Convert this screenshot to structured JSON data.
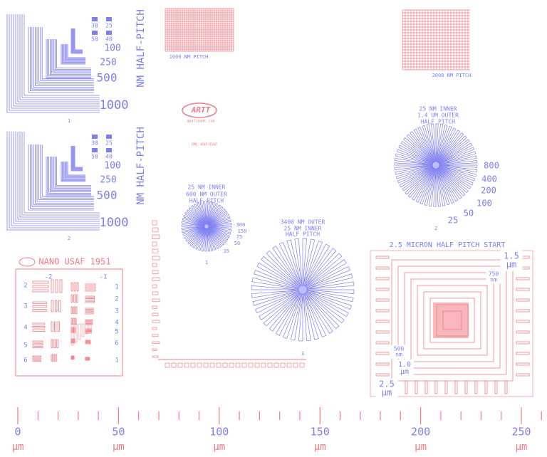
{
  "pattern_1": {
    "label": "1",
    "pitch_labels": [
      "30",
      "25",
      "50",
      "40",
      "100",
      "250",
      "500",
      "1000"
    ],
    "caption": "NM HALF-PITCH"
  },
  "pattern_2": {
    "label": "2",
    "pitch_labels": [
      "30",
      "25",
      "50",
      "40",
      "100",
      "250",
      "500",
      "1000"
    ],
    "caption": "NM HALF-PITCH"
  },
  "grid_1": {
    "caption": "1000 NM PITCH"
  },
  "grid_2": {
    "caption": "2000 NM PITCH"
  },
  "logo": {
    "mark": "ARTT",
    "site": "appliednt.com",
    "model": "DML-400 USAF"
  },
  "star_1": {
    "title": [
      "25 NM INNER",
      "600 NM OUTER",
      "HALF PITCH"
    ],
    "scale": [
      "300",
      "150",
      "75",
      "50",
      "35"
    ],
    "label": "1"
  },
  "star_2": {
    "title": [
      "25 NM INNER",
      "1.4 UM OUTER",
      "HALF PITCH"
    ],
    "scale": [
      "800",
      "400",
      "200",
      "100",
      "50",
      "25"
    ],
    "label": "2"
  },
  "star_3": {
    "title": [
      "3400 NM OUTER",
      "25 NM INNER",
      "HALF PITCH"
    ],
    "label": "3"
  },
  "usaf": {
    "title": "NANO USAF 1951",
    "groups": [
      "-2",
      "-1"
    ],
    "left_elements": [
      "2",
      "3",
      "4",
      "5",
      "6"
    ],
    "right_elements": [
      "1",
      "2",
      "3",
      "4",
      "5",
      "6",
      "1"
    ]
  },
  "square": {
    "title": "2.5 MICRON HALF PITCH START",
    "labels": [
      {
        "value": "1.5",
        "unit": "µm"
      },
      {
        "value": "750",
        "unit": "nm"
      },
      {
        "value": "500",
        "unit": "nm"
      },
      {
        "value": "1.0",
        "unit": "µm"
      },
      {
        "value": "2.5",
        "unit": "µm"
      }
    ]
  },
  "ruler": {
    "ticks": [
      "0",
      "50",
      "100",
      "150",
      "200",
      "250"
    ],
    "unit": "µm"
  }
}
